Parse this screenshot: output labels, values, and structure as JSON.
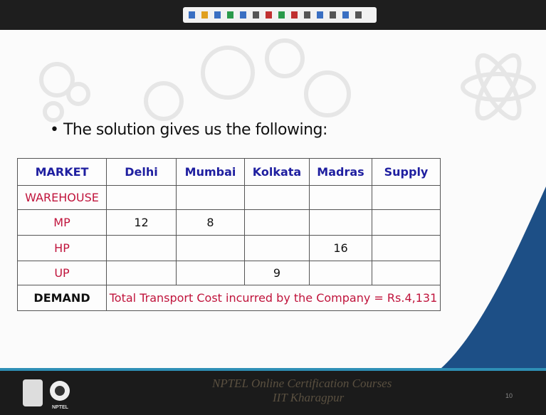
{
  "slide": {
    "bullet": "The solution gives us the following:",
    "table": {
      "header": [
        "MARKET",
        "Delhi",
        "Mumbai",
        "Kolkata",
        "Madras",
        "Supply"
      ],
      "subheader": "WAREHOUSE",
      "rows": [
        {
          "label": "MP",
          "values": [
            12,
            8,
            null,
            null,
            null
          ]
        },
        {
          "label": "HP",
          "values": [
            null,
            null,
            null,
            16,
            null
          ]
        },
        {
          "label": "UP",
          "values": [
            null,
            null,
            9,
            null,
            null
          ]
        }
      ],
      "footer": {
        "label": "DEMAND",
        "note": "Total Transport Cost incurred by the Company = Rs.4,131"
      }
    }
  },
  "footer": {
    "line1": "NPTEL Online Certification Courses",
    "line2": "IIT Kharagpur",
    "logo_label": "NPTEL",
    "page": "10"
  }
}
